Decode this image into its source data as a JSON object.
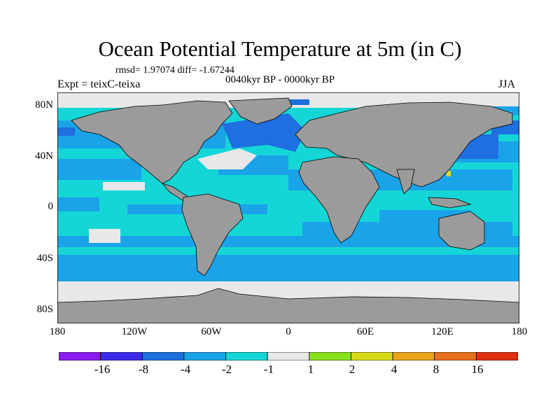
{
  "title": "Ocean Potential Temperature at 5m (in C)",
  "stats": "rmsd= 1.97074 diff= -1.67244",
  "experiment": "Expt = teixC-teixa",
  "period": "0040kyr BP - 0000kyr BP",
  "season": "JJA",
  "map": {
    "projection": "cylindrical equidistant",
    "lon_range": [
      -180,
      180
    ],
    "lat_range": [
      -90,
      90
    ],
    "land_color": "#9b9b9b",
    "lat_labels": [
      "80N",
      "40N",
      "0",
      "40S",
      "80S"
    ],
    "lon_labels": [
      "180",
      "120W",
      "60W",
      "0",
      "60E",
      "120E",
      "180"
    ]
  },
  "colorbar": {
    "colors": [
      "#8a1cf0",
      "#3a2be8",
      "#1e6fe0",
      "#1aa3e8",
      "#14d6d6",
      "#e8e8e8",
      "#8ae020",
      "#d8d818",
      "#e8a41a",
      "#e8701a",
      "#e03010"
    ],
    "labels": [
      "-16",
      "-8",
      "-4",
      "-2",
      "-1",
      "1",
      "2",
      "4",
      "8",
      "16"
    ]
  }
}
